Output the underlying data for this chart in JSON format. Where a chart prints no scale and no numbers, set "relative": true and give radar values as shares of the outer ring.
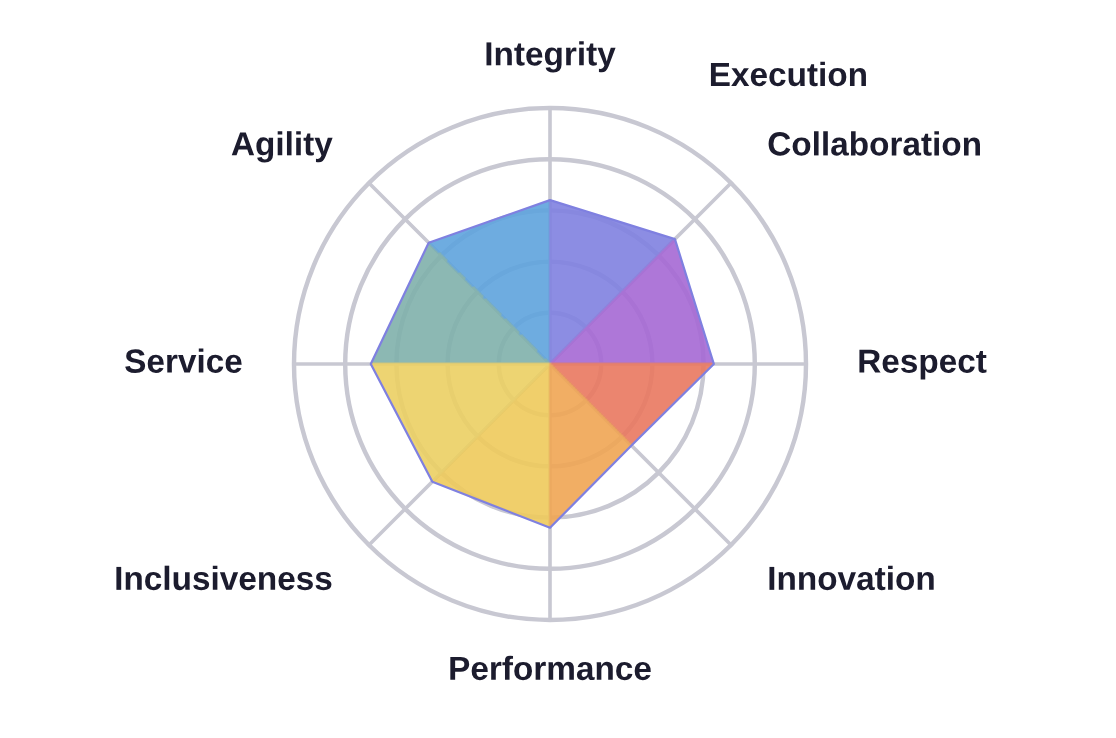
{
  "chart_data": {
    "type": "radar",
    "relative": true,
    "grid": true,
    "categories": [
      "Integrity",
      "Collaboration",
      "Respect",
      "Innovation",
      "Performance",
      "Inclusiveness",
      "Service",
      "Agility"
    ],
    "series": [
      {
        "values": [
          0.64,
          0.69,
          0.64,
          0.45,
          0.64,
          0.65,
          0.7,
          0.67
        ],
        "colors": [
          "#7f80e0",
          "#a568d4",
          "#e9775f",
          "#efa552",
          "#eec95a",
          "#ebcf62",
          "#7fb0aa",
          "#5ea3dd"
        ]
      }
    ],
    "annotations": [
      "Execution"
    ]
  }
}
